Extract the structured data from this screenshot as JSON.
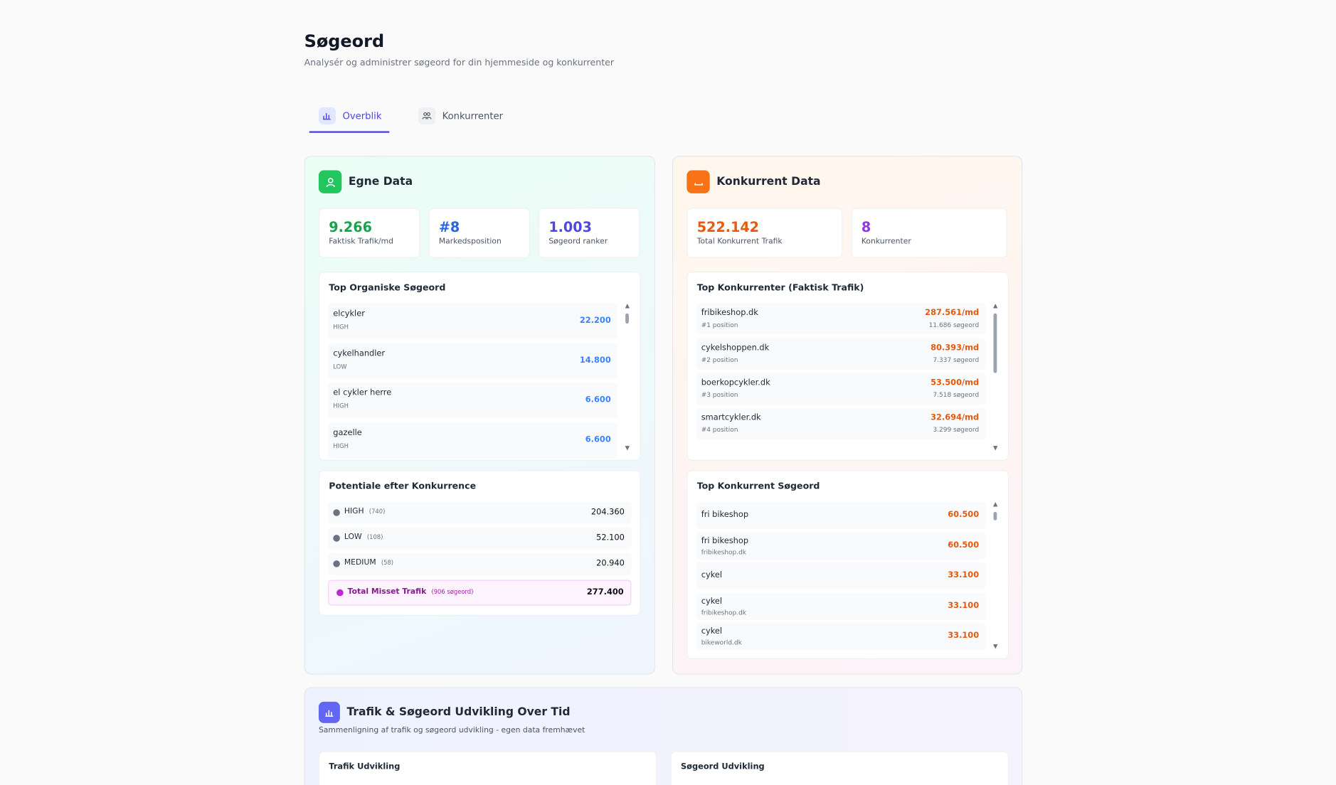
{
  "header": {
    "title": "Søgeord",
    "subtitle": "Analysér og administrer søgeord for din hjemmeside og konkurrenter"
  },
  "tabs": [
    "Overblik",
    "Konkurrenter"
  ],
  "own_data": {
    "title": "Egne Data",
    "stats": [
      {
        "value": "9.266",
        "label": "Faktisk Trafik/md"
      },
      {
        "value": "#8",
        "label": "Markedsposition"
      },
      {
        "value": "1.003",
        "label": "Søgeord ranker"
      }
    ],
    "top_keywords": {
      "title": "Top Organiske Søgeord",
      "items": [
        {
          "keyword": "elcykler",
          "level": "HIGH",
          "volume": "22.200"
        },
        {
          "keyword": "cykelhandler",
          "level": "LOW",
          "volume": "14.800"
        },
        {
          "keyword": "el cykler herre",
          "level": "HIGH",
          "volume": "6.600"
        },
        {
          "keyword": "gazelle",
          "level": "HIGH",
          "volume": "6.600"
        }
      ]
    },
    "potential": {
      "title": "Potentiale efter Konkurrence",
      "rows": [
        {
          "level": "HIGH",
          "count": "(740)",
          "value": "204.360"
        },
        {
          "level": "LOW",
          "count": "(108)",
          "value": "52.100"
        },
        {
          "level": "MEDIUM",
          "count": "(58)",
          "value": "20.940"
        }
      ],
      "total": {
        "label": "Total Misset Trafik",
        "count": "(906 søgeord)",
        "value": "277.400"
      }
    }
  },
  "competitor_data": {
    "title": "Konkurrent Data",
    "stats": [
      {
        "value": "522.142",
        "label": "Total Konkurrent Trafik"
      },
      {
        "value": "8",
        "label": "Konkurrenter"
      }
    ],
    "top_competitors": {
      "title": "Top Konkurrenter (Faktisk Trafik)",
      "items": [
        {
          "domain": "fribikeshop.dk",
          "position": "#1 position",
          "traffic": "287.561/md",
          "keywords": "11.686 søgeord"
        },
        {
          "domain": "cykelshoppen.dk",
          "position": "#2 position",
          "traffic": "80.393/md",
          "keywords": "7.337 søgeord"
        },
        {
          "domain": "boerkopcykler.dk",
          "position": "#3 position",
          "traffic": "53.500/md",
          "keywords": "7.518 søgeord"
        },
        {
          "domain": "smartcykler.dk",
          "position": "#4 position",
          "traffic": "32.694/md",
          "keywords": "3.299 søgeord"
        }
      ]
    },
    "top_keywords": {
      "title": "Top Konkurrent Søgeord",
      "items": [
        {
          "keyword": "fri bikeshop",
          "volume": "60.500"
        },
        {
          "keyword": "fri bikeshop",
          "domain": "fribikeshop.dk",
          "volume": "60.500"
        },
        {
          "keyword": "cykel",
          "volume": "33.100"
        },
        {
          "keyword": "cykel",
          "domain": "fribikeshop.dk",
          "volume": "33.100"
        },
        {
          "keyword": "cykel",
          "domain": "bikeworld.dk",
          "volume": "33.100"
        }
      ]
    }
  },
  "trend": {
    "title": "Trafik & Søgeord Udvikling Over Tid",
    "subtitle": "Sammenligning af trafik og søgeord udvikling - egen data fremhævet",
    "charts": [
      "Trafik Udvikling",
      "Søgeord Udvikling"
    ]
  }
}
